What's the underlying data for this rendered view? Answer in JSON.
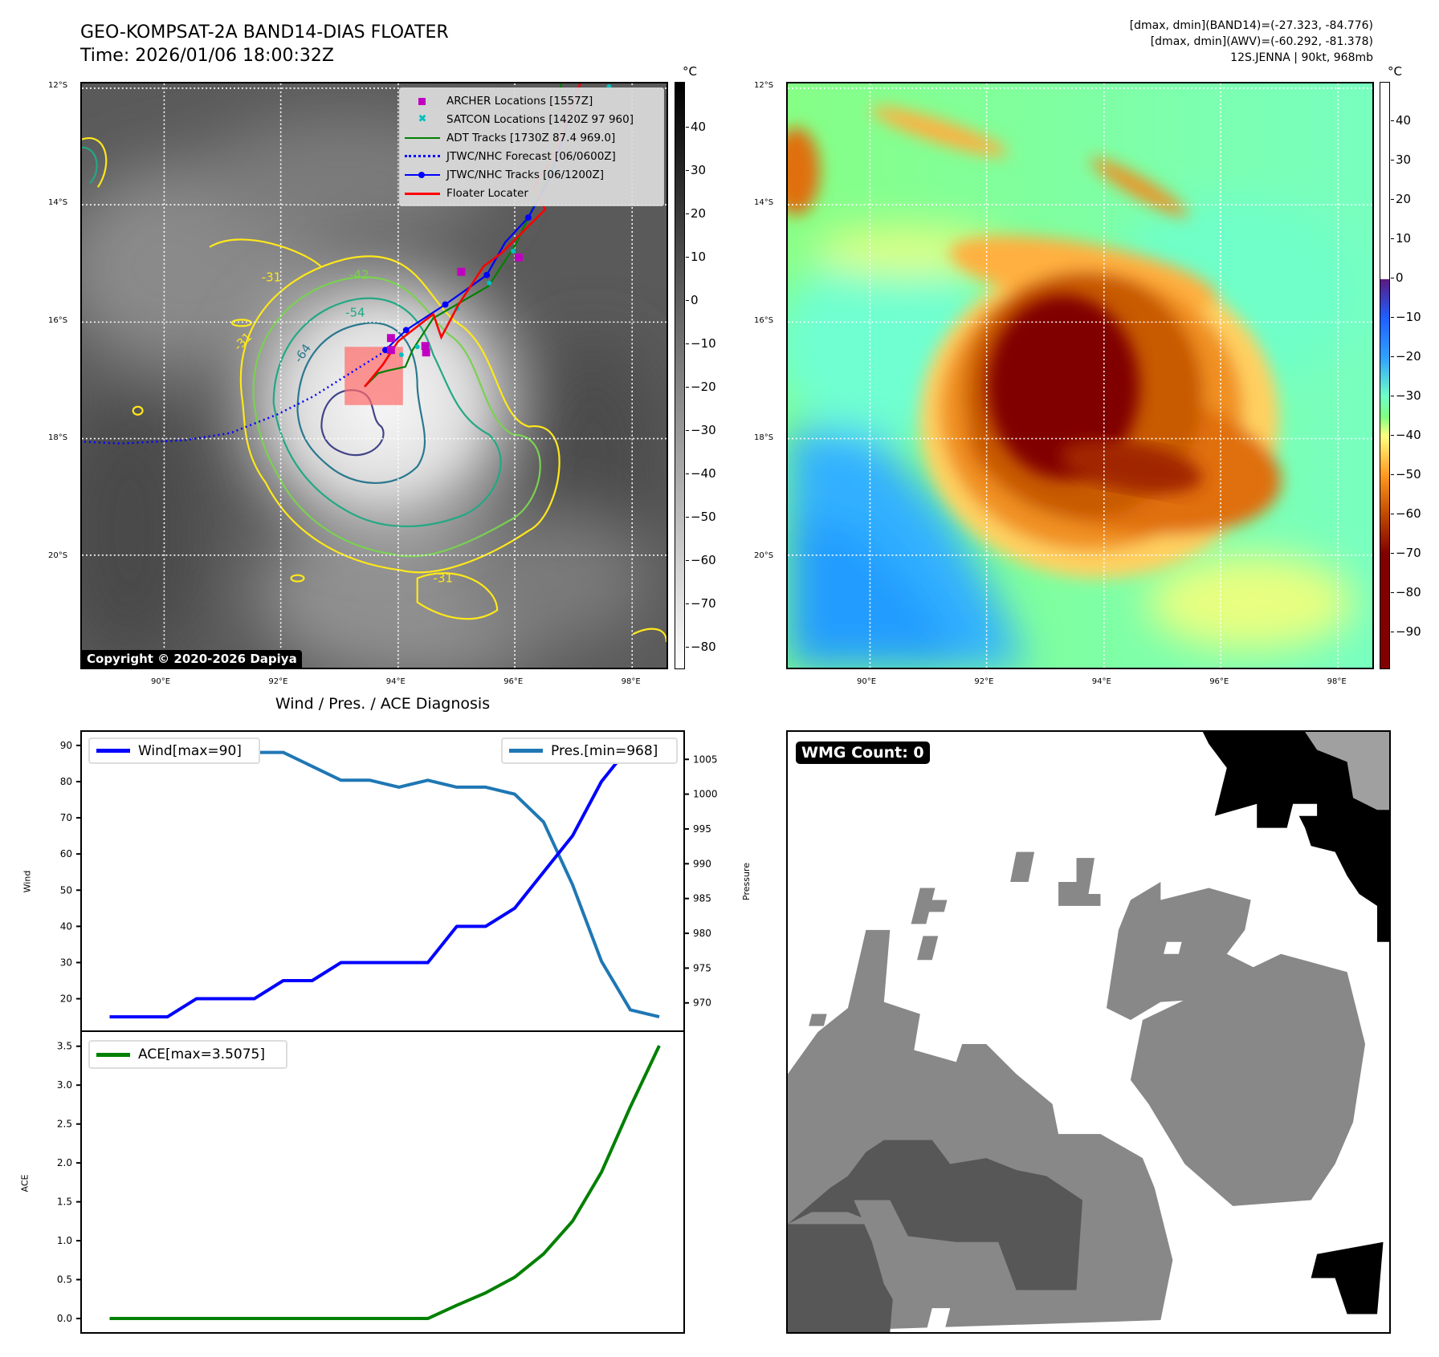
{
  "header": {
    "title_line1": "GEO-KOMPSAT-2A BAND14-DIAS FLOATER",
    "title_line2": "Time: 2026/01/06 18:00:32Z",
    "info_line1": "[dmax, dmin](BAND14)=(-27.323, -84.776)",
    "info_line2": "[dmax, dmin](AWV)=(-60.292, -81.378)",
    "info_line3": "12S.JENNA | 90kt, 968mb"
  },
  "maps": {
    "lat_ticks": [
      "12°S",
      "14°S",
      "16°S",
      "18°S",
      "20°S"
    ],
    "lon_ticks": [
      "90°E",
      "92°E",
      "94°E",
      "96°E",
      "98°E"
    ],
    "contour_labels": [
      "-31",
      "-42",
      "-54",
      "-64",
      "-31",
      "-31"
    ],
    "copyright": "Copyright © 2020-2026 Dapiya",
    "legend": [
      {
        "label": "ARCHER Locations [1557Z]",
        "color": "#c000c0",
        "symbol": "square"
      },
      {
        "label": "SATCON Locations [1420Z 97 960]",
        "color": "#00c0c0",
        "symbol": "x"
      },
      {
        "label": "ADT Tracks [1730Z 87.4 969.0]",
        "color": "#008000",
        "symbol": "line"
      },
      {
        "label": "JTWC/NHC Forecast [06/0600Z]",
        "color": "#0000ff",
        "symbol": "dotted"
      },
      {
        "label": "JTWC/NHC Tracks [06/1200Z]",
        "color": "#0000ff",
        "symbol": "line-dot"
      },
      {
        "label": "Floater Locater",
        "color": "#ff0000",
        "symbol": "line"
      }
    ]
  },
  "colorbars": {
    "unit": "°C",
    "gray_ticks": [
      "40",
      "30",
      "20",
      "10",
      "0",
      "−10",
      "−20",
      "−30",
      "−40",
      "−50",
      "−60",
      "−70",
      "−80"
    ],
    "gray_values": [
      40,
      30,
      20,
      10,
      0,
      -10,
      -20,
      -30,
      -40,
      -50,
      -60,
      -70,
      -80
    ],
    "gray_range": [
      -85,
      50.6
    ],
    "color_ticks": [
      "40",
      "30",
      "20",
      "10",
      "0",
      "−10",
      "−20",
      "−30",
      "−40",
      "−50",
      "−60",
      "−70",
      "−80",
      "−90"
    ],
    "color_values": [
      40,
      30,
      20,
      10,
      0,
      -10,
      -20,
      -30,
      -40,
      -50,
      -60,
      -70,
      -80,
      -90
    ],
    "color_range": [
      -99.4,
      50.1
    ]
  },
  "diagnosis": {
    "title": "Wind / Pres. / ACE Diagnosis",
    "wind_legend": "Wind[max=90]",
    "pres_legend": "Pres.[min=968]",
    "ace_legend": "ACE[max=3.5075]",
    "wind_label": "Wind",
    "pres_label": "Pressure",
    "ace_label": "ACE",
    "wind_color": "#0000ff",
    "pres_color": "#1f77b4",
    "ace_color": "#008000"
  },
  "wmg": {
    "badge": "WMG Count: 0"
  },
  "chart_data": [
    {
      "type": "line",
      "title": "Wind / Pres. / ACE Diagnosis",
      "x": [
        0,
        1,
        2,
        3,
        4,
        5,
        6,
        7,
        8,
        9,
        10,
        11,
        12,
        13,
        14,
        15,
        16,
        17,
        18,
        19
      ],
      "series": [
        {
          "name": "Wind[max=90]",
          "axis": "left",
          "values": [
            15,
            15,
            15,
            20,
            20,
            20,
            25,
            25,
            30,
            30,
            30,
            30,
            40,
            40,
            45,
            55,
            65,
            80,
            90,
            90
          ]
        },
        {
          "name": "Pres.[min=968]",
          "axis": "right",
          "values": [
            1007,
            1007,
            1007,
            1007,
            1007,
            1006,
            1006,
            1004,
            1002,
            1002,
            1001,
            1002,
            1001,
            1001,
            1000,
            996,
            987,
            976,
            969,
            968
          ]
        }
      ],
      "ylabel": "Wind",
      "ylim": [
        11.25,
        93.75
      ],
      "yticks": [
        "20",
        "30",
        "40",
        "50",
        "60",
        "70",
        "80",
        "90"
      ],
      "y2label": "Pressure",
      "y2lim": [
        966.05,
        1008.95
      ],
      "y2ticks": [
        "970",
        "975",
        "980",
        "985",
        "990",
        "995",
        "1000",
        "1005"
      ],
      "legend": "top-left / top-right"
    },
    {
      "type": "line",
      "x": [
        0,
        1,
        2,
        3,
        4,
        5,
        6,
        7,
        8,
        9,
        10,
        11,
        12,
        13,
        14,
        15,
        16,
        17,
        18,
        19
      ],
      "series": [
        {
          "name": "ACE[max=3.5075]",
          "values": [
            0,
            0,
            0,
            0,
            0,
            0,
            0,
            0,
            0,
            0,
            0,
            0,
            0.17,
            0.33,
            0.53,
            0.83,
            1.25,
            1.88,
            2.72,
            3.5075
          ]
        }
      ],
      "ylabel": "ACE",
      "ylim": [
        -0.175,
        3.683
      ],
      "yticks": [
        "0.0",
        "0.5",
        "1.0",
        "1.5",
        "2.0",
        "2.5",
        "3.0",
        "3.5"
      ],
      "legend": "top-left"
    }
  ]
}
